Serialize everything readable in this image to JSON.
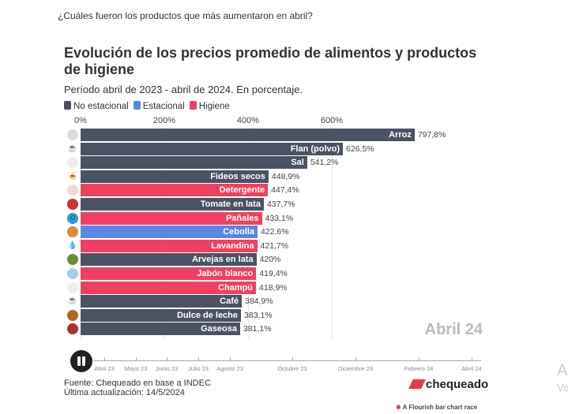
{
  "question": "¿Cuáles fueron los productos que más aumentaron en abril?",
  "chart_data": {
    "type": "bar",
    "title": "Evolución de los precios promedio de alimentos y productos de higiene",
    "subtitle": "Período abril de 2023 - abril de 2024. En porcentaje.",
    "legend": [
      {
        "name": "No estacional",
        "color": "#4a5263"
      },
      {
        "name": "Estacional",
        "color": "#5b86e5"
      },
      {
        "name": "Higiene",
        "color": "#f0405f"
      }
    ],
    "xticks": [
      "0%",
      "200%",
      "400%",
      "600%"
    ],
    "xlim": [
      0,
      800
    ],
    "grid": true,
    "current_date": "Abril 24",
    "bars": [
      {
        "label": "Arroz",
        "value": 797.8,
        "display": "797,8%",
        "group": "No estacional",
        "icon": "rice-icon"
      },
      {
        "label": "Flan (polvo)",
        "value": 626.5,
        "display": "626,5%",
        "group": "No estacional",
        "icon": "flan-icon"
      },
      {
        "label": "Sal",
        "value": 541.2,
        "display": "541,2%",
        "group": "No estacional",
        "icon": "salt-icon"
      },
      {
        "label": "Fideos secos",
        "value": 448.9,
        "display": "448,9%",
        "group": "No estacional",
        "icon": "pasta-icon"
      },
      {
        "label": "Detergente",
        "value": 447.4,
        "display": "447,4%",
        "group": "Higiene",
        "icon": "detergent-icon"
      },
      {
        "label": "Tomate en lata",
        "value": 437.7,
        "display": "437,7%",
        "group": "No estacional",
        "icon": "canned-tomato-icon"
      },
      {
        "label": "Pañales",
        "value": 433.1,
        "display": "433,1%",
        "group": "Higiene",
        "icon": "diaper-icon"
      },
      {
        "label": "Cebolla",
        "value": 422.6,
        "display": "422,6%",
        "group": "Estacional",
        "icon": "onion-icon"
      },
      {
        "label": "Lavandina",
        "value": 421.7,
        "display": "421,7%",
        "group": "Higiene",
        "icon": "bleach-icon"
      },
      {
        "label": "Arvejas en lata",
        "value": 420,
        "display": "420%",
        "group": "No estacional",
        "icon": "canned-peas-icon"
      },
      {
        "label": "Jabón blanco",
        "value": 419.4,
        "display": "419,4%",
        "group": "Higiene",
        "icon": "soap-icon"
      },
      {
        "label": "Champú",
        "value": 418.9,
        "display": "418,9%",
        "group": "Higiene",
        "icon": "shampoo-icon"
      },
      {
        "label": "Café",
        "value": 384.9,
        "display": "384,9%",
        "group": "No estacional",
        "icon": "coffee-icon"
      },
      {
        "label": "Dulce de leche",
        "value": 383.1,
        "display": "383,1%",
        "group": "No estacional",
        "icon": "dulce-de-leche-icon"
      },
      {
        "label": "Gaseosa",
        "value": 381.1,
        "display": "381,1%",
        "group": "No estacional",
        "icon": "soda-icon"
      }
    ]
  },
  "timeline": {
    "labels": [
      "Abril 23",
      "Mayo 23",
      "Junio 23",
      "Julio 23",
      "Agosto 23",
      "Octubre 23",
      "Diciembre 23",
      "Febrero 24",
      "Abril 24"
    ],
    "progress": 1.0
  },
  "footer": {
    "source": "Fuente: Chequeado en base a INDEC",
    "updated": "Última actualización: 14/5/2024",
    "logo": "chequeado",
    "flourish": "A Flourish bar chart race"
  },
  "ghost": {
    "a": "A",
    "b": "Ve"
  }
}
